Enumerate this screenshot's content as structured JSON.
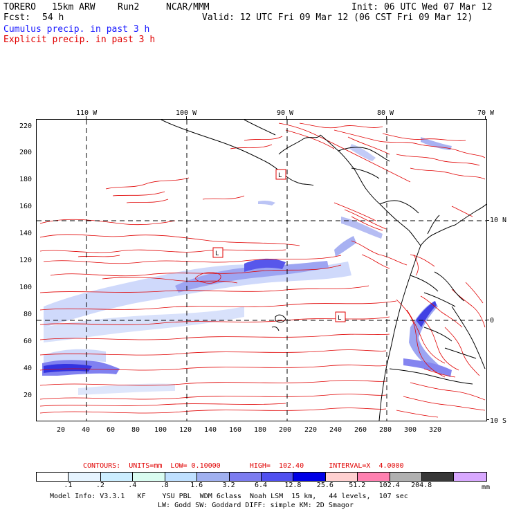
{
  "header": {
    "model": "TORERO",
    "resolution": "15km ARW",
    "run": "Run2",
    "org": "NCAR/MMM",
    "init": "Init: 06 UTC Wed 07 Mar 12",
    "fcst_label": "Fcst:",
    "fcst_value": "54 h",
    "valid": "Valid: 12 UTC Fri 09 Mar 12 (06 CST Fri 09 Mar 12)"
  },
  "legend": {
    "cumulus": "Cumulus precip. in past 3 h",
    "explicit": "Explicit precip. in past 3 h"
  },
  "axes": {
    "top_lon": [
      "110 W",
      "100 W",
      "90 W",
      "80 W",
      "70 W"
    ],
    "right_lat": [
      "10 N",
      "0",
      "10 S"
    ],
    "left_ticks": [
      "220",
      "200",
      "180",
      "160",
      "140",
      "120",
      "100",
      "80",
      "60",
      "40",
      "20"
    ],
    "bottom_ticks": [
      "20",
      "40",
      "60",
      "80",
      "100",
      "120",
      "140",
      "160",
      "180",
      "200",
      "220",
      "240",
      "260",
      "280",
      "300",
      "320"
    ]
  },
  "map_labels": {
    "low_marks": [
      "L",
      "L",
      "L"
    ]
  },
  "contours": {
    "text": "CONTOURS:  UNITS=mm  LOW= 0.10000       HIGH=  102.40      INTERVAL=X  4.0000"
  },
  "colorbar": {
    "unit": "mm",
    "labels": [
      ".1",
      ".2",
      ".4",
      ".8",
      "1.6",
      "3.2",
      "6.4",
      "12.8",
      "25.6",
      "51.2",
      "102.4",
      "204.8"
    ],
    "colors": [
      "#ffffff",
      "#e6f4ff",
      "#cceeff",
      "#d9fcf0",
      "#bfe0ff",
      "#a0b0f0",
      "#7c7cf0",
      "#5050f0",
      "#0000e6",
      "#ffd0d0",
      "#ff80b0",
      "#b0b0b0",
      "#383838",
      "#d8a8ff"
    ]
  },
  "footer": {
    "line1": "Model Info: V3.3.1   KF    YSU PBL  WDM 6class  Noah LSM  15 km,   44 levels,  107 sec",
    "line2": "LW: Godd SW: Goddard DIFF: simple KM: 2D Smagor"
  }
}
